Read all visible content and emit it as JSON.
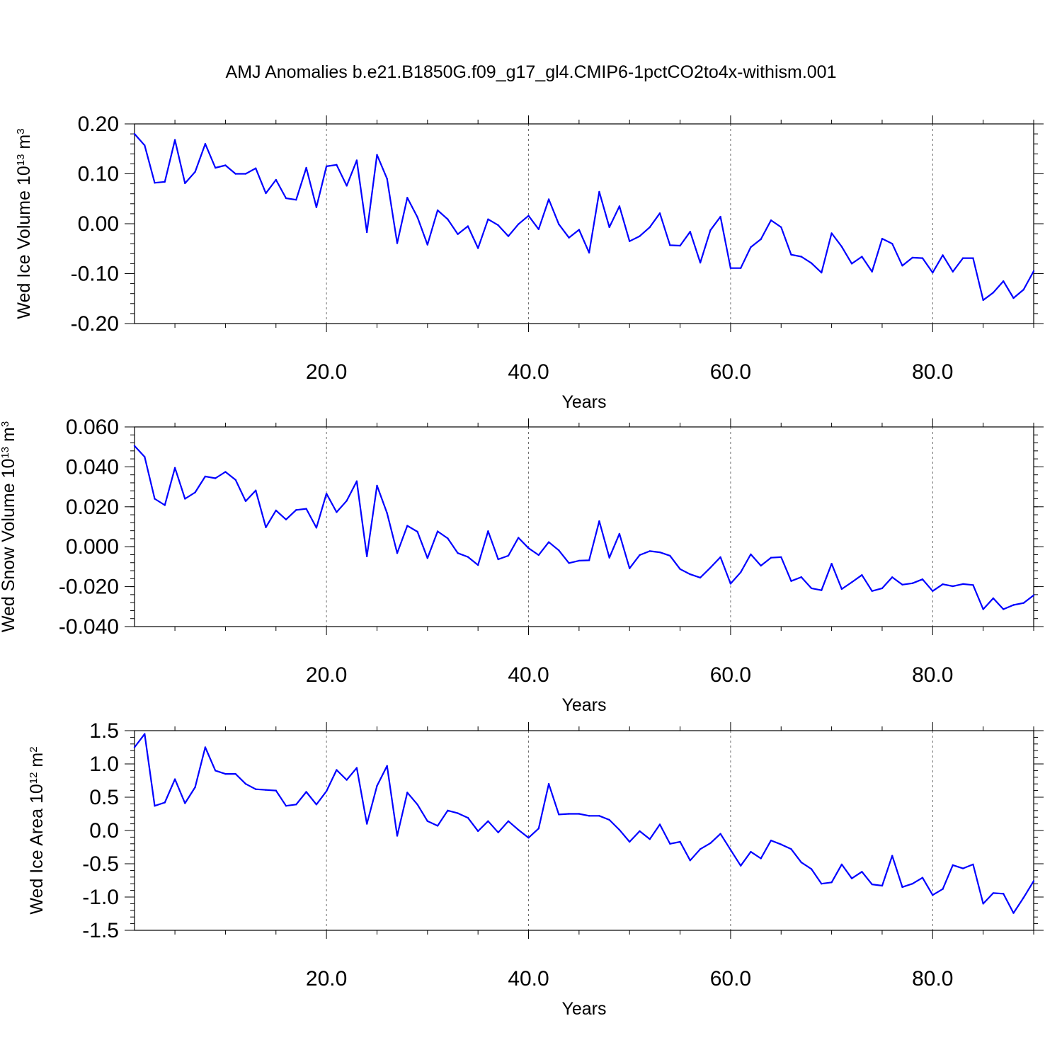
{
  "title": "AMJ Anomalies b.e21.B1850G.f09_g17_gl4.CMIP6-1pctCO2to4x-withism.001",
  "colors": {
    "series": "#0000ff",
    "axes": "#000000",
    "background": "#ffffff"
  },
  "chart_data": [
    {
      "type": "line",
      "panel": "wed_ice_volume",
      "ylabel": "Wed Ice Volume 10",
      "ylabel_exp": "13",
      "ylabel_unit": " m",
      "ylabel_unit_exp": "3",
      "xlabel": "Years",
      "xlim": [
        1,
        90
      ],
      "ylim": [
        -0.2,
        0.2
      ],
      "xticks": [
        20,
        40,
        60,
        80
      ],
      "xtick_labels": [
        "20.0",
        "40.0",
        "60.0",
        "80.0"
      ],
      "yticks": [
        -0.2,
        -0.1,
        0,
        0.1,
        0.2
      ],
      "ytick_labels": [
        "-0.20",
        "-0.10",
        "0.00",
        "0.10",
        "0.20"
      ],
      "y_minor_step": 0.02,
      "grid": "vertical dashed at major x ticks",
      "x": [
        1,
        2,
        3,
        4,
        5,
        6,
        7,
        8,
        9,
        10,
        11,
        12,
        13,
        14,
        15,
        16,
        17,
        18,
        19,
        20,
        21,
        22,
        23,
        24,
        25,
        26,
        27,
        28,
        29,
        30,
        31,
        32,
        33,
        34,
        35,
        36,
        37,
        38,
        39,
        40,
        41,
        42,
        43,
        44,
        45,
        46,
        47,
        48,
        49,
        50,
        51,
        52,
        53,
        54,
        55,
        56,
        57,
        58,
        59,
        60,
        61,
        62,
        63,
        64,
        65,
        66,
        67,
        68,
        69,
        70,
        71,
        72,
        73,
        74,
        75,
        76,
        77,
        78,
        79,
        80,
        81,
        82,
        83,
        84,
        85,
        86,
        87,
        88,
        89,
        90
      ],
      "values": [
        0.18,
        0.157,
        0.082,
        0.084,
        0.168,
        0.081,
        0.104,
        0.16,
        0.112,
        0.117,
        0.1,
        0.1,
        0.111,
        0.061,
        0.088,
        0.051,
        0.048,
        0.112,
        0.033,
        0.115,
        0.118,
        0.076,
        0.127,
        -0.017,
        0.138,
        0.09,
        -0.039,
        0.052,
        0.013,
        -0.042,
        0.027,
        0.009,
        -0.021,
        -0.005,
        -0.049,
        0.009,
        -0.003,
        -0.025,
        -0.001,
        0.016,
        -0.011,
        0.049,
        -0.001,
        -0.028,
        -0.012,
        -0.058,
        0.064,
        -0.007,
        0.035,
        -0.035,
        -0.025,
        -0.007,
        0.021,
        -0.043,
        -0.044,
        -0.016,
        -0.078,
        -0.013,
        0.014,
        -0.089,
        -0.089,
        -0.047,
        -0.031,
        0.007,
        -0.007,
        -0.062,
        -0.066,
        -0.079,
        -0.098,
        -0.019,
        -0.046,
        -0.08,
        -0.066,
        -0.096,
        -0.03,
        -0.04,
        -0.084,
        -0.068,
        -0.069,
        -0.098,
        -0.063,
        -0.096,
        -0.069,
        -0.069,
        -0.153,
        -0.138,
        -0.115,
        -0.149,
        -0.132,
        -0.095
      ]
    },
    {
      "type": "line",
      "panel": "wed_snow_volume",
      "ylabel": "Wed Snow Volume 10",
      "ylabel_exp": "13",
      "ylabel_unit": " m",
      "ylabel_unit_exp": "3",
      "xlabel": "Years",
      "xlim": [
        1,
        90
      ],
      "ylim": [
        -0.04,
        0.06
      ],
      "xticks": [
        20,
        40,
        60,
        80
      ],
      "xtick_labels": [
        "20.0",
        "40.0",
        "60.0",
        "80.0"
      ],
      "yticks": [
        -0.04,
        -0.02,
        0,
        0.02,
        0.04,
        0.06
      ],
      "ytick_labels": [
        "-0.040",
        "-0.020",
        "0.000",
        "0.020",
        "0.040",
        "0.060"
      ],
      "y_minor_step": 0.004,
      "grid": "vertical dashed at major x ticks",
      "x": [
        1,
        2,
        3,
        4,
        5,
        6,
        7,
        8,
        9,
        10,
        11,
        12,
        13,
        14,
        15,
        16,
        17,
        18,
        19,
        20,
        21,
        22,
        23,
        24,
        25,
        26,
        27,
        28,
        29,
        30,
        31,
        32,
        33,
        34,
        35,
        36,
        37,
        38,
        39,
        40,
        41,
        42,
        43,
        44,
        45,
        46,
        47,
        48,
        49,
        50,
        51,
        52,
        53,
        54,
        55,
        56,
        57,
        58,
        59,
        60,
        61,
        62,
        63,
        64,
        65,
        66,
        67,
        68,
        69,
        70,
        71,
        72,
        73,
        74,
        75,
        76,
        77,
        78,
        79,
        80,
        81,
        82,
        83,
        84,
        85,
        86,
        87,
        88,
        89,
        90
      ],
      "values": [
        0.0505,
        0.045,
        0.024,
        0.0208,
        0.0395,
        0.024,
        0.0272,
        0.0352,
        0.0343,
        0.0375,
        0.0335,
        0.0228,
        0.0282,
        0.0097,
        0.0182,
        0.0136,
        0.0184,
        0.019,
        0.0095,
        0.0266,
        0.0173,
        0.023,
        0.0328,
        -0.0048,
        0.0306,
        0.0168,
        -0.0032,
        0.0105,
        0.0075,
        -0.0057,
        0.0077,
        0.0042,
        -0.0032,
        -0.0051,
        -0.0092,
        0.0078,
        -0.0063,
        -0.0045,
        0.0045,
        -0.0007,
        -0.0042,
        0.0023,
        -0.0018,
        -0.0082,
        -0.007,
        -0.0068,
        0.0128,
        -0.0055,
        0.0065,
        -0.0108,
        -0.0042,
        -0.0022,
        -0.0028,
        -0.0045,
        -0.0112,
        -0.0138,
        -0.0155,
        -0.0105,
        -0.0052,
        -0.0185,
        -0.0128,
        -0.0038,
        -0.0095,
        -0.0055,
        -0.0052,
        -0.0172,
        -0.0152,
        -0.0208,
        -0.0218,
        -0.0085,
        -0.0212,
        -0.0178,
        -0.0142,
        -0.0222,
        -0.0208,
        -0.0153,
        -0.019,
        -0.0183,
        -0.0163,
        -0.0222,
        -0.0188,
        -0.0198,
        -0.0187,
        -0.0192,
        -0.0313,
        -0.0258,
        -0.0313,
        -0.0292,
        -0.0282,
        -0.0243
      ]
    },
    {
      "type": "line",
      "panel": "wed_ice_area",
      "ylabel": "Wed Ice Area 10",
      "ylabel_exp": "12",
      "ylabel_unit": " m",
      "ylabel_unit_exp": "2",
      "xlabel": "Years",
      "xlim": [
        1,
        90
      ],
      "ylim": [
        -1.5,
        1.5
      ],
      "xticks": [
        20,
        40,
        60,
        80
      ],
      "xtick_labels": [
        "20.0",
        "40.0",
        "60.0",
        "80.0"
      ],
      "yticks": [
        -1.5,
        -1.0,
        -0.5,
        0,
        0.5,
        1.0,
        1.5
      ],
      "ytick_labels": [
        "-1.5",
        "-1.0",
        "-0.5",
        "0.0",
        "0.5",
        "1.0",
        "1.5"
      ],
      "y_minor_step": 0.1,
      "grid": "vertical dashed at major x ticks",
      "x": [
        1,
        2,
        3,
        4,
        5,
        6,
        7,
        8,
        9,
        10,
        11,
        12,
        13,
        14,
        15,
        16,
        17,
        18,
        19,
        20,
        21,
        22,
        23,
        24,
        25,
        26,
        27,
        28,
        29,
        30,
        31,
        32,
        33,
        34,
        35,
        36,
        37,
        38,
        39,
        40,
        41,
        42,
        43,
        44,
        45,
        46,
        47,
        48,
        49,
        50,
        51,
        52,
        53,
        54,
        55,
        56,
        57,
        58,
        59,
        60,
        61,
        62,
        63,
        64,
        65,
        66,
        67,
        68,
        69,
        70,
        71,
        72,
        73,
        74,
        75,
        76,
        77,
        78,
        79,
        80,
        81,
        82,
        83,
        84,
        85,
        86,
        87,
        88,
        89,
        90
      ],
      "values": [
        1.25,
        1.45,
        0.37,
        0.42,
        0.77,
        0.41,
        0.65,
        1.25,
        0.9,
        0.85,
        0.85,
        0.7,
        0.62,
        0.61,
        0.6,
        0.37,
        0.39,
        0.58,
        0.39,
        0.59,
        0.91,
        0.76,
        0.94,
        0.1,
        0.67,
        0.97,
        -0.08,
        0.57,
        0.39,
        0.14,
        0.07,
        0.3,
        0.26,
        0.19,
        -0.01,
        0.14,
        -0.03,
        0.14,
        0.01,
        -0.11,
        0.03,
        0.7,
        0.24,
        0.25,
        0.25,
        0.22,
        0.22,
        0.16,
        0.01,
        -0.17,
        -0.01,
        -0.13,
        0.09,
        -0.2,
        -0.17,
        -0.45,
        -0.28,
        -0.19,
        -0.05,
        -0.29,
        -0.53,
        -0.32,
        -0.42,
        -0.15,
        -0.21,
        -0.28,
        -0.48,
        -0.58,
        -0.8,
        -0.78,
        -0.51,
        -0.72,
        -0.62,
        -0.81,
        -0.83,
        -0.38,
        -0.85,
        -0.8,
        -0.71,
        -0.97,
        -0.88,
        -0.52,
        -0.57,
        -0.51,
        -1.1,
        -0.94,
        -0.95,
        -1.24,
        -1.01,
        -0.76
      ]
    }
  ]
}
